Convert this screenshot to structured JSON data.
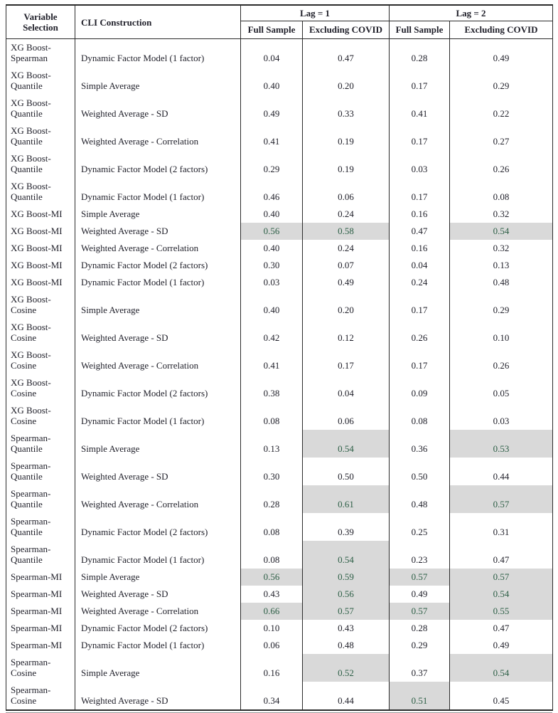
{
  "table": {
    "headers": {
      "variable_selection": "Variable Selection",
      "cli_construction": "CLI Construction",
      "lag1": "Lag = 1",
      "lag2": "Lag = 2",
      "full_sample_lag1": "Full Sample",
      "excluding_covid_lag1": "Excluding COVID",
      "full_sample_lag2": "Full Sample",
      "excluding_covid_lag2": "Excluding COVID"
    },
    "colors": {
      "highlight_background": "#d9d9d9",
      "highlight_text": "#2d5f46",
      "text": "#1f1f29",
      "border": "#2b2b2b"
    },
    "rows": [
      {
        "variable": "XG Boost-Spearman",
        "construction": "Dynamic Factor Model (1 factor)",
        "values": [
          "0.04",
          "0.47",
          "0.28",
          "0.49"
        ],
        "highlights": [
          false,
          false,
          false,
          false
        ]
      },
      {
        "variable": "XG Boost-Quantile",
        "construction": "Simple Average",
        "values": [
          "0.40",
          "0.20",
          "0.17",
          "0.29"
        ],
        "highlights": [
          false,
          false,
          false,
          false
        ]
      },
      {
        "variable": "XG Boost-Quantile",
        "construction": "Weighted Average - SD",
        "values": [
          "0.49",
          "0.33",
          "0.41",
          "0.22"
        ],
        "highlights": [
          false,
          false,
          false,
          false
        ]
      },
      {
        "variable": "XG Boost-Quantile",
        "construction": "Weighted Average - Correlation",
        "values": [
          "0.41",
          "0.19",
          "0.17",
          "0.27"
        ],
        "highlights": [
          false,
          false,
          false,
          false
        ]
      },
      {
        "variable": "XG Boost-Quantile",
        "construction": "Dynamic Factor Model (2 factors)",
        "values": [
          "0.29",
          "0.19",
          "0.03",
          "0.26"
        ],
        "highlights": [
          false,
          false,
          false,
          false
        ]
      },
      {
        "variable": "XG Boost-Quantile",
        "construction": "Dynamic Factor Model (1 factor)",
        "values": [
          "0.46",
          "0.06",
          "0.17",
          "0.08"
        ],
        "highlights": [
          false,
          false,
          false,
          false
        ]
      },
      {
        "variable": "XG Boost-MI",
        "construction": "Simple Average",
        "values": [
          "0.40",
          "0.24",
          "0.16",
          "0.32"
        ],
        "highlights": [
          false,
          false,
          false,
          false
        ]
      },
      {
        "variable": "XG Boost-MI",
        "construction": "Weighted Average - SD",
        "values": [
          "0.56",
          "0.58",
          "0.47",
          "0.54"
        ],
        "highlights": [
          true,
          true,
          false,
          true
        ]
      },
      {
        "variable": "XG Boost-MI",
        "construction": "Weighted Average - Correlation",
        "values": [
          "0.40",
          "0.24",
          "0.16",
          "0.32"
        ],
        "highlights": [
          false,
          false,
          false,
          false
        ]
      },
      {
        "variable": "XG Boost-MI",
        "construction": "Dynamic Factor Model (2 factors)",
        "values": [
          "0.30",
          "0.07",
          "0.04",
          "0.13"
        ],
        "highlights": [
          false,
          false,
          false,
          false
        ]
      },
      {
        "variable": "XG Boost-MI",
        "construction": "Dynamic Factor Model (1 factor)",
        "values": [
          "0.03",
          "0.49",
          "0.24",
          "0.48"
        ],
        "highlights": [
          false,
          false,
          false,
          false
        ]
      },
      {
        "variable": "XG Boost-Cosine",
        "construction": "Simple Average",
        "values": [
          "0.40",
          "0.20",
          "0.17",
          "0.29"
        ],
        "highlights": [
          false,
          false,
          false,
          false
        ]
      },
      {
        "variable": "XG Boost-Cosine",
        "construction": "Weighted Average - SD",
        "values": [
          "0.42",
          "0.12",
          "0.26",
          "0.10"
        ],
        "highlights": [
          false,
          false,
          false,
          false
        ]
      },
      {
        "variable": "XG Boost-Cosine",
        "construction": "Weighted Average - Correlation",
        "values": [
          "0.41",
          "0.17",
          "0.17",
          "0.26"
        ],
        "highlights": [
          false,
          false,
          false,
          false
        ]
      },
      {
        "variable": "XG Boost-Cosine",
        "construction": "Dynamic Factor Model (2 factors)",
        "values": [
          "0.38",
          "0.04",
          "0.09",
          "0.05"
        ],
        "highlights": [
          false,
          false,
          false,
          false
        ]
      },
      {
        "variable": "XG Boost-Cosine",
        "construction": "Dynamic Factor Model (1 factor)",
        "values": [
          "0.08",
          "0.06",
          "0.08",
          "0.03"
        ],
        "highlights": [
          false,
          false,
          false,
          false
        ]
      },
      {
        "variable": "Spearman-Quantile",
        "construction": "Simple Average",
        "values": [
          "0.13",
          "0.54",
          "0.36",
          "0.53"
        ],
        "highlights": [
          false,
          true,
          false,
          true
        ]
      },
      {
        "variable": "Spearman-Quantile",
        "construction": "Weighted Average - SD",
        "values": [
          "0.30",
          "0.50",
          "0.50",
          "0.44"
        ],
        "highlights": [
          false,
          false,
          false,
          false
        ]
      },
      {
        "variable": "Spearman-Quantile",
        "construction": "Weighted Average - Correlation",
        "values": [
          "0.28",
          "0.61",
          "0.48",
          "0.57"
        ],
        "highlights": [
          false,
          true,
          false,
          true
        ]
      },
      {
        "variable": "Spearman-Quantile",
        "construction": "Dynamic Factor Model (2 factors)",
        "values": [
          "0.08",
          "0.39",
          "0.25",
          "0.31"
        ],
        "highlights": [
          false,
          false,
          false,
          false
        ]
      },
      {
        "variable": "Spearman-Quantile",
        "construction": "Dynamic Factor Model (1 factor)",
        "values": [
          "0.08",
          "0.54",
          "0.23",
          "0.47"
        ],
        "highlights": [
          false,
          true,
          false,
          false
        ]
      },
      {
        "variable": "Spearman-MI",
        "construction": "Simple Average",
        "values": [
          "0.56",
          "0.59",
          "0.57",
          "0.57"
        ],
        "highlights": [
          true,
          true,
          true,
          true
        ]
      },
      {
        "variable": "Spearman-MI",
        "construction": "Weighted Average - SD",
        "values": [
          "0.43",
          "0.56",
          "0.49",
          "0.54"
        ],
        "highlights": [
          false,
          true,
          false,
          true
        ]
      },
      {
        "variable": "Spearman-MI",
        "construction": "Weighted Average - Correlation",
        "values": [
          "0.66",
          "0.57",
          "0.57",
          "0.55"
        ],
        "highlights": [
          true,
          true,
          true,
          true
        ]
      },
      {
        "variable": "Spearman-MI",
        "construction": "Dynamic Factor Model (2 factors)",
        "values": [
          "0.10",
          "0.43",
          "0.28",
          "0.47"
        ],
        "highlights": [
          false,
          false,
          false,
          false
        ]
      },
      {
        "variable": "Spearman-MI",
        "construction": "Dynamic Factor Model (1 factor)",
        "values": [
          "0.06",
          "0.48",
          "0.29",
          "0.49"
        ],
        "highlights": [
          false,
          false,
          false,
          false
        ]
      },
      {
        "variable": "Spearman-Cosine",
        "construction": "Simple Average",
        "values": [
          "0.16",
          "0.52",
          "0.37",
          "0.54"
        ],
        "highlights": [
          false,
          true,
          false,
          true
        ]
      },
      {
        "variable": "Spearman-Cosine",
        "construction": "Weighted Average - SD",
        "values": [
          "0.34",
          "0.44",
          "0.51",
          "0.45"
        ],
        "highlights": [
          false,
          false,
          true,
          false
        ]
      }
    ]
  }
}
